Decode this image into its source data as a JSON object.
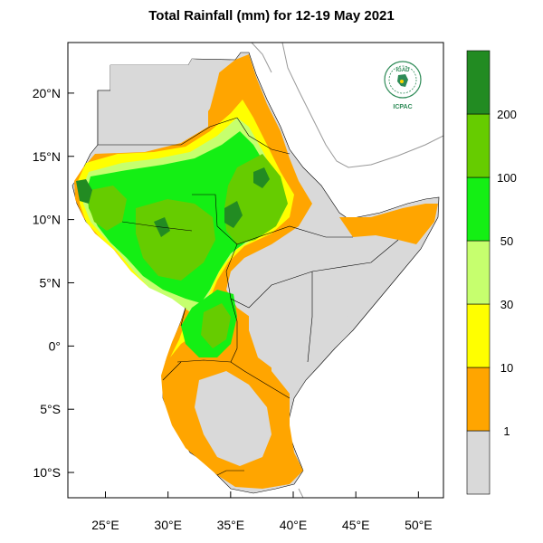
{
  "title": "Total Rainfall (mm) for 12-19 May 2021",
  "map": {
    "lon_range": [
      22,
      52
    ],
    "lat_range": [
      -12,
      24
    ],
    "x_ticks": [
      {
        "value": 25,
        "label": "25°E"
      },
      {
        "value": 30,
        "label": "30°E"
      },
      {
        "value": 35,
        "label": "35°E"
      },
      {
        "value": 40,
        "label": "40°E"
      },
      {
        "value": 45,
        "label": "45°E"
      },
      {
        "value": 50,
        "label": "50°E"
      }
    ],
    "y_ticks": [
      {
        "value": 20,
        "label": "20°N"
      },
      {
        "value": 15,
        "label": "15°N"
      },
      {
        "value": 10,
        "label": "10°N"
      },
      {
        "value": 5,
        "label": "5°N"
      },
      {
        "value": 0,
        "label": "0°"
      },
      {
        "value": -5,
        "label": "5°S"
      },
      {
        "value": -10,
        "label": "10°S"
      }
    ]
  },
  "colorbar": {
    "bins": [
      {
        "color": "#d9d9d9",
        "label": "1"
      },
      {
        "color": "#ffa500",
        "label": "10"
      },
      {
        "color": "#ffff00",
        "label": "30"
      },
      {
        "color": "#c6ff6e",
        "label": "50"
      },
      {
        "color": "#14ef14",
        "label": "100"
      },
      {
        "color": "#66cc00",
        "label": "200"
      },
      {
        "color": "#228b22",
        "label": ""
      }
    ]
  },
  "logo": {
    "top_text": "IGAD",
    "bottom_text": "ICPAC"
  },
  "colors": {
    "land_no_rain": "#d9d9d9",
    "light_rain": "#ffa500",
    "moderate_rain": "#ffff00",
    "heavy": "#c6ff6e",
    "very_heavy": "#14ef14",
    "extreme": "#66cc00",
    "max": "#228b22",
    "logo_green": "#2e8b57"
  }
}
